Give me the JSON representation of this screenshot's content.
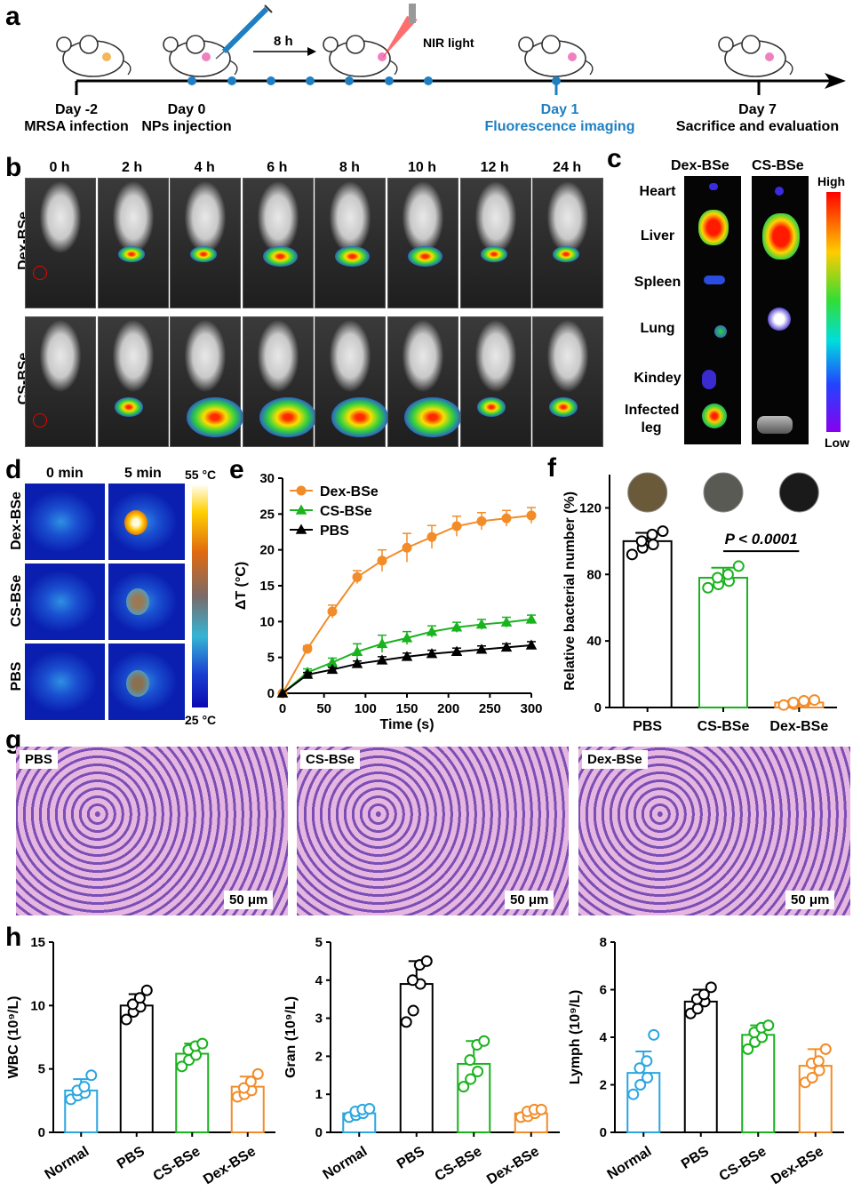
{
  "panels": {
    "a": "a",
    "b": "b",
    "c": "c",
    "d": "d",
    "e": "e",
    "f": "f",
    "g": "g",
    "h": "h"
  },
  "timeline": {
    "events": [
      {
        "day": "Day -2",
        "desc": "MRSA infection"
      },
      {
        "day": "Day 0",
        "desc": "NPs injection"
      },
      {
        "day": "Day 1",
        "desc": "Fluorescence imaging"
      },
      {
        "day": "Day 7",
        "desc": "Sacrifice and evaluation"
      }
    ],
    "interval": "8 h",
    "nir": "NIR light",
    "colors": {
      "highlight": "#1f7fc2",
      "dot": "#1f7fc2"
    }
  },
  "imaging": {
    "times": [
      "0 h",
      "2 h",
      "4 h",
      "6 h",
      "8 h",
      "10 h",
      "12 h",
      "24 h"
    ],
    "rows": [
      "Dex-BSe",
      "CS-BSe"
    ]
  },
  "organs": {
    "cols": [
      "Dex-BSe",
      "CS-BSe"
    ],
    "labels": [
      "Heart",
      "Liver",
      "Spleen",
      "Lung",
      "Kindey",
      "Infected leg"
    ],
    "scale_high": "High",
    "scale_low": "Low"
  },
  "thermal": {
    "cols": [
      "0 min",
      "5 min"
    ],
    "rows": [
      "Dex-BSe",
      "CS-BSe",
      "PBS"
    ],
    "scale_max": "55 °C",
    "scale_min": "25 °C"
  },
  "histology": {
    "labels": [
      "PBS",
      "CS-BSe",
      "Dex-BSe"
    ],
    "scalebar": "50 μm"
  },
  "chart_data": [
    {
      "id": "e",
      "type": "line",
      "xlabel": "Time (s)",
      "ylabel": "ΔT (°C)",
      "xlim": [
        0,
        300
      ],
      "ylim": [
        0,
        30
      ],
      "xticks": [
        0,
        50,
        100,
        150,
        200,
        250,
        300
      ],
      "yticks": [
        0,
        5,
        10,
        15,
        20,
        25,
        30
      ],
      "x": [
        0,
        30,
        60,
        90,
        120,
        150,
        180,
        210,
        240,
        270,
        300
      ],
      "series": [
        {
          "name": "Dex-BSe",
          "color": "#f28c28",
          "marker": "circle",
          "values": [
            0,
            6.2,
            11.4,
            16.2,
            18.5,
            20.3,
            21.8,
            23.3,
            24.0,
            24.4,
            24.8
          ],
          "err": [
            0,
            0.4,
            0.9,
            0.9,
            1.5,
            2.0,
            1.6,
            1.4,
            1.2,
            1.1,
            1.1
          ]
        },
        {
          "name": "CS-BSe",
          "color": "#19b31e",
          "marker": "triangle",
          "values": [
            0,
            2.9,
            4.3,
            5.8,
            6.9,
            7.7,
            8.6,
            9.2,
            9.6,
            9.9,
            10.3
          ],
          "err": [
            0,
            0.5,
            0.6,
            1.1,
            1.2,
            0.9,
            0.8,
            0.7,
            0.7,
            0.7,
            0.6
          ]
        },
        {
          "name": "PBS",
          "color": "#000000",
          "marker": "triangle",
          "values": [
            0,
            2.6,
            3.3,
            4.1,
            4.6,
            5.1,
            5.5,
            5.8,
            6.1,
            6.4,
            6.7
          ],
          "err": [
            0,
            0.3,
            0.3,
            0.4,
            0.5,
            0.5,
            0.5,
            0.5,
            0.5,
            0.5,
            0.5
          ]
        }
      ]
    },
    {
      "id": "f",
      "type": "bar",
      "ylabel": "Relative bacterial number  (%)",
      "ylim": [
        0,
        140
      ],
      "yticks": [
        0,
        40,
        80,
        120
      ],
      "categories": [
        "PBS",
        "CS-BSe",
        "Dex-BSe"
      ],
      "values": [
        100,
        78,
        3
      ],
      "err": [
        5,
        6,
        1
      ],
      "colors": [
        "#000000",
        "#19b31e",
        "#f28c28"
      ],
      "points": [
        [
          92,
          96,
          98,
          100,
          104,
          106
        ],
        [
          72,
          74,
          76,
          78,
          80,
          85
        ],
        [
          1.5,
          2,
          3,
          3,
          4,
          4.5
        ]
      ],
      "annotation": "P < 0.0001"
    },
    {
      "id": "h1",
      "type": "bar",
      "ylabel": "WBC (10⁹/L)",
      "ylim": [
        0,
        15
      ],
      "yticks": [
        0,
        5,
        10,
        15
      ],
      "categories": [
        "Normal",
        "PBS",
        "CS-BSe",
        "Dex-BSe"
      ],
      "values": [
        3.3,
        10.0,
        6.2,
        3.6
      ],
      "err": [
        0.9,
        0.9,
        0.8,
        0.8
      ],
      "colors": [
        "#2ba6e0",
        "#000000",
        "#19b31e",
        "#f28c28"
      ],
      "points": [
        [
          2.6,
          2.9,
          3.1,
          3.3,
          3.6,
          4.5
        ],
        [
          8.9,
          9.5,
          9.9,
          10.1,
          10.6,
          11.2
        ],
        [
          5.2,
          5.7,
          6.1,
          6.5,
          6.8,
          7.0
        ],
        [
          2.8,
          3.0,
          3.3,
          3.5,
          4.0,
          4.6
        ]
      ]
    },
    {
      "id": "h2",
      "type": "bar",
      "ylabel": "Gran (10⁹/L)",
      "ylim": [
        0,
        5
      ],
      "yticks": [
        0,
        1,
        2,
        3,
        4,
        5
      ],
      "categories": [
        "Normal",
        "PBS",
        "CS-BSe",
        "Dex-BSe"
      ],
      "values": [
        0.5,
        3.9,
        1.8,
        0.5
      ],
      "err": [
        0.1,
        0.6,
        0.6,
        0.1
      ],
      "colors": [
        "#2ba6e0",
        "#000000",
        "#19b31e",
        "#f28c28"
      ],
      "points": [
        [
          0.4,
          0.45,
          0.5,
          0.55,
          0.6,
          0.62
        ],
        [
          2.9,
          3.2,
          3.9,
          4.0,
          4.4,
          4.5
        ],
        [
          1.2,
          1.4,
          1.6,
          1.9,
          2.3,
          2.4
        ],
        [
          0.4,
          0.42,
          0.5,
          0.55,
          0.6,
          0.6
        ]
      ]
    },
    {
      "id": "h3",
      "type": "bar",
      "ylabel": "Lymph (10⁹/L)",
      "ylim": [
        0,
        8
      ],
      "yticks": [
        0,
        2,
        4,
        6,
        8
      ],
      "categories": [
        "Normal",
        "PBS",
        "CS-BSe",
        "Dex-BSe"
      ],
      "values": [
        2.5,
        5.5,
        4.1,
        2.8
      ],
      "err": [
        0.9,
        0.5,
        0.4,
        0.7
      ],
      "colors": [
        "#2ba6e0",
        "#000000",
        "#19b31e",
        "#f28c28"
      ],
      "points": [
        [
          1.6,
          2.0,
          2.3,
          2.7,
          3.0,
          4.1
        ],
        [
          5.0,
          5.2,
          5.5,
          5.6,
          5.8,
          6.1
        ],
        [
          3.5,
          3.8,
          4.0,
          4.2,
          4.4,
          4.5
        ],
        [
          2.1,
          2.3,
          2.6,
          2.9,
          3.0,
          3.5
        ]
      ]
    }
  ]
}
